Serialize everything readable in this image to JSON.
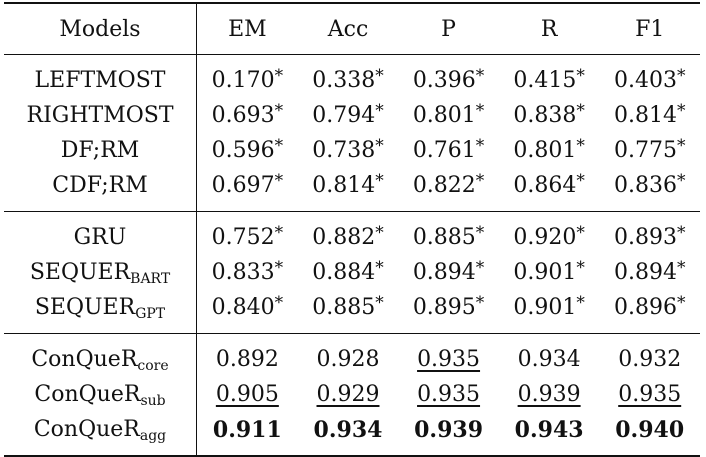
{
  "header": {
    "models": "Models",
    "em": "EM",
    "acc": "Acc",
    "p": "P",
    "r": "R",
    "f1": "F1"
  },
  "groups": [
    [
      {
        "model": "LEFTMOST",
        "sub": "",
        "vals": [
          "0.170",
          "0.338",
          "0.396",
          "0.415",
          "0.403"
        ],
        "star": "*"
      },
      {
        "model": "RIGHTMOST",
        "sub": "",
        "vals": [
          "0.693",
          "0.794",
          "0.801",
          "0.838",
          "0.814"
        ],
        "star": "*"
      },
      {
        "model": "DF;RM",
        "sub": "",
        "vals": [
          "0.596",
          "0.738",
          "0.761",
          "0.801",
          "0.775"
        ],
        "star": "*"
      },
      {
        "model": "CDF;RM",
        "sub": "",
        "vals": [
          "0.697",
          "0.814",
          "0.822",
          "0.864",
          "0.836"
        ],
        "star": "*"
      }
    ],
    [
      {
        "model": "GRU",
        "sub": "",
        "vals": [
          "0.752",
          "0.882",
          "0.885",
          "0.920",
          "0.893"
        ],
        "star": "*"
      },
      {
        "model": "SEQUER",
        "sub": "BART",
        "vals": [
          "0.833",
          "0.884",
          "0.894",
          "0.901",
          "0.894"
        ],
        "star": "*"
      },
      {
        "model": "SEQUER",
        "sub": "GPT",
        "vals": [
          "0.840",
          "0.885",
          "0.895",
          "0.901",
          "0.896"
        ],
        "star": "*"
      }
    ],
    [
      {
        "model": "ConQueR",
        "sub": "core",
        "vals": [
          "0.892",
          "0.928",
          "0.935",
          "0.934",
          "0.932"
        ],
        "star": ""
      },
      {
        "model": "ConQueR",
        "sub": "sub",
        "vals": [
          "0.905",
          "0.929",
          "0.935",
          "0.939",
          "0.935"
        ],
        "star": ""
      },
      {
        "model": "ConQueR",
        "sub": "agg",
        "vals": [
          "0.911",
          "0.934",
          "0.939",
          "0.943",
          "0.940"
        ],
        "star": ""
      }
    ]
  ]
}
